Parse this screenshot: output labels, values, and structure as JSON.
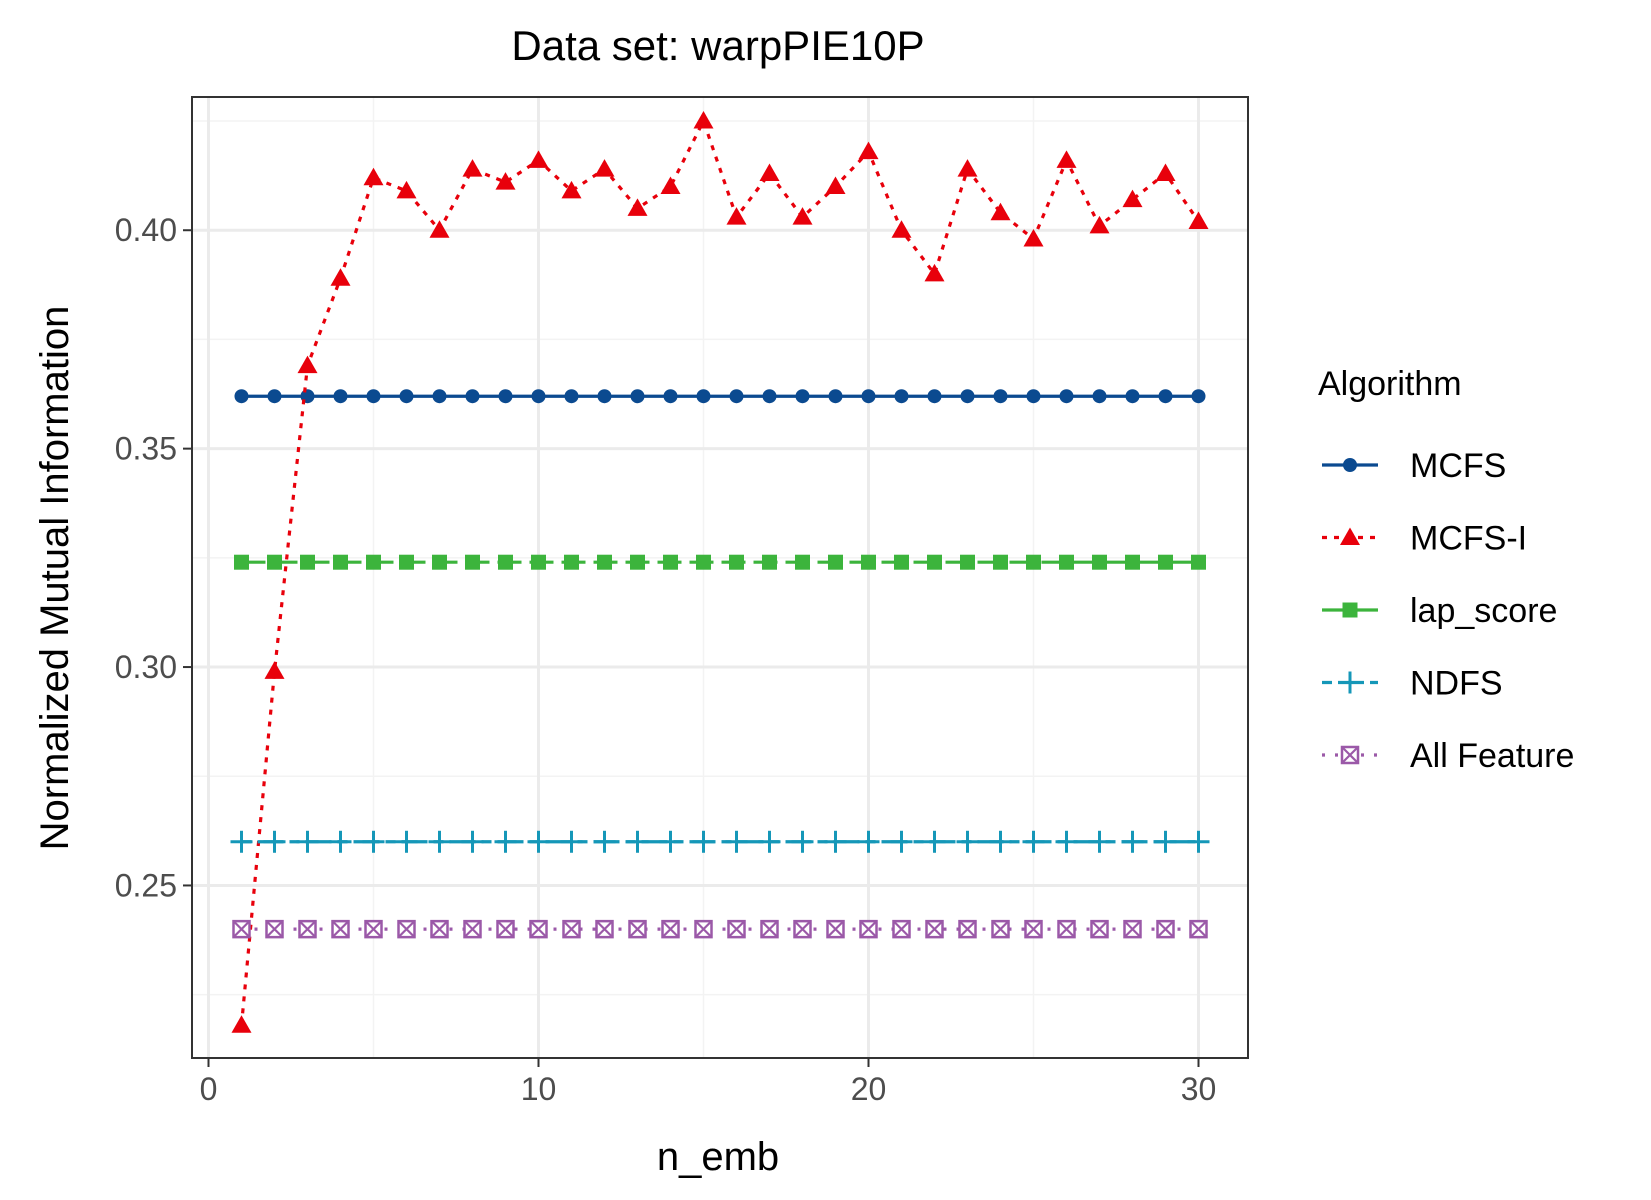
{
  "chart_data": {
    "type": "line",
    "title": "Data set: warpPIE10P",
    "xlabel": "n_emb",
    "ylabel": "Normalized Mutual Information",
    "xlim": [
      -0.5,
      31.5
    ],
    "ylim": [
      0.2105,
      0.4305
    ],
    "x_ticks": [
      0,
      10,
      20,
      30
    ],
    "y_ticks": [
      0.25,
      0.3,
      0.35,
      0.4
    ],
    "x_tick_labels": [
      "0",
      "10",
      "20",
      "30"
    ],
    "y_tick_labels": [
      "0.25",
      "0.30",
      "0.35",
      "0.40"
    ],
    "grid": true,
    "legend": {
      "title": "Algorithm",
      "position": "right"
    },
    "x": [
      1,
      2,
      3,
      4,
      5,
      6,
      7,
      8,
      9,
      10,
      11,
      12,
      13,
      14,
      15,
      16,
      17,
      18,
      19,
      20,
      21,
      22,
      23,
      24,
      25,
      26,
      27,
      28,
      29,
      30
    ],
    "series": [
      {
        "name": "MCFS",
        "color": "#0b4a90",
        "linestyle": "solid",
        "marker": "circle",
        "values": [
          0.362,
          0.362,
          0.362,
          0.362,
          0.362,
          0.362,
          0.362,
          0.362,
          0.362,
          0.362,
          0.362,
          0.362,
          0.362,
          0.362,
          0.362,
          0.362,
          0.362,
          0.362,
          0.362,
          0.362,
          0.362,
          0.362,
          0.362,
          0.362,
          0.362,
          0.362,
          0.362,
          0.362,
          0.362,
          0.362
        ]
      },
      {
        "name": "MCFS-I",
        "color": "#e8000b",
        "linestyle": "dotted",
        "marker": "triangle",
        "values": [
          0.218,
          0.299,
          0.369,
          0.389,
          0.412,
          0.409,
          0.4,
          0.414,
          0.411,
          0.416,
          0.409,
          0.414,
          0.405,
          0.41,
          0.425,
          0.403,
          0.413,
          0.403,
          0.41,
          0.418,
          0.4,
          0.39,
          0.414,
          0.404,
          0.398,
          0.416,
          0.401,
          0.407,
          0.413,
          0.402
        ]
      },
      {
        "name": "lap_score",
        "color": "#3cb43c",
        "linestyle": "longdash",
        "marker": "square",
        "values": [
          0.324,
          0.324,
          0.324,
          0.324,
          0.324,
          0.324,
          0.324,
          0.324,
          0.324,
          0.324,
          0.324,
          0.324,
          0.324,
          0.324,
          0.324,
          0.324,
          0.324,
          0.324,
          0.324,
          0.324,
          0.324,
          0.324,
          0.324,
          0.324,
          0.324,
          0.324,
          0.324,
          0.324,
          0.324,
          0.324
        ]
      },
      {
        "name": "NDFS",
        "color": "#1597b8",
        "linestyle": "twodash",
        "marker": "plus",
        "values": [
          0.26,
          0.26,
          0.26,
          0.26,
          0.26,
          0.26,
          0.26,
          0.26,
          0.26,
          0.26,
          0.26,
          0.26,
          0.26,
          0.26,
          0.26,
          0.26,
          0.26,
          0.26,
          0.26,
          0.26,
          0.26,
          0.26,
          0.26,
          0.26,
          0.26,
          0.26,
          0.26,
          0.26,
          0.26,
          0.26
        ]
      },
      {
        "name": "All Feature",
        "color": "#9b59a8",
        "linestyle": "dotted-sparse",
        "marker": "square-x",
        "values": [
          0.24,
          0.24,
          0.24,
          0.24,
          0.24,
          0.24,
          0.24,
          0.24,
          0.24,
          0.24,
          0.24,
          0.24,
          0.24,
          0.24,
          0.24,
          0.24,
          0.24,
          0.24,
          0.24,
          0.24,
          0.24,
          0.24,
          0.24,
          0.24,
          0.24,
          0.24,
          0.24,
          0.24,
          0.24,
          0.24
        ]
      }
    ]
  }
}
